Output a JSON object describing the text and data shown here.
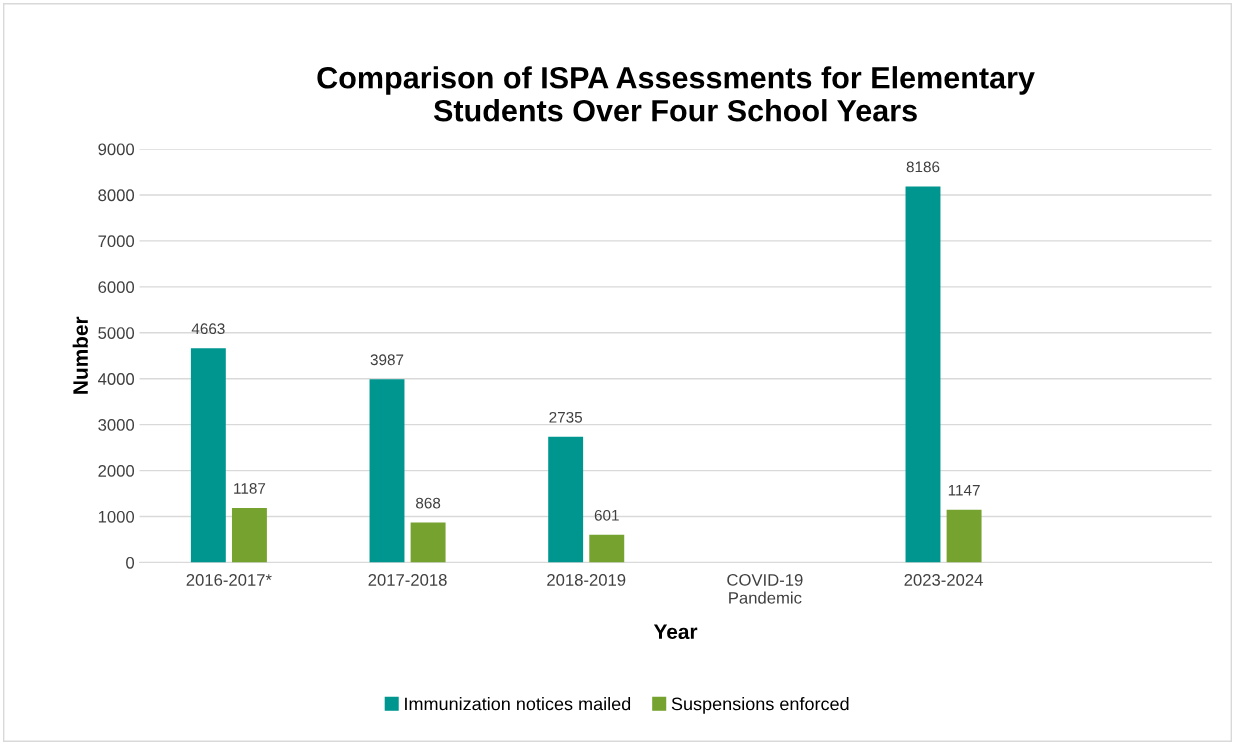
{
  "chart_data": {
    "type": "bar",
    "title": "Comparison of ISPA Assessments for Elementary\nStudents Over Four School Years",
    "xlabel": "Year",
    "ylabel": "Number",
    "categories": [
      "2016-2017*",
      "2017-2018",
      "2018-2019",
      "COVID-19\nPandemic",
      "2023-2024",
      null
    ],
    "series": [
      {
        "name": "Immunization notices mailed",
        "color": "#009690",
        "values": [
          4663,
          3987,
          2735,
          null,
          8186,
          null
        ]
      },
      {
        "name": "Suspensions enforced",
        "color": "#76a22f",
        "values": [
          1187,
          868,
          601,
          null,
          1147,
          null
        ]
      }
    ],
    "ylim": [
      0,
      9000
    ],
    "yticks": [
      0,
      1000,
      2000,
      3000,
      4000,
      5000,
      6000,
      7000,
      8000,
      9000
    ],
    "grid": "y",
    "legend": "bottom",
    "data_labels": true
  }
}
